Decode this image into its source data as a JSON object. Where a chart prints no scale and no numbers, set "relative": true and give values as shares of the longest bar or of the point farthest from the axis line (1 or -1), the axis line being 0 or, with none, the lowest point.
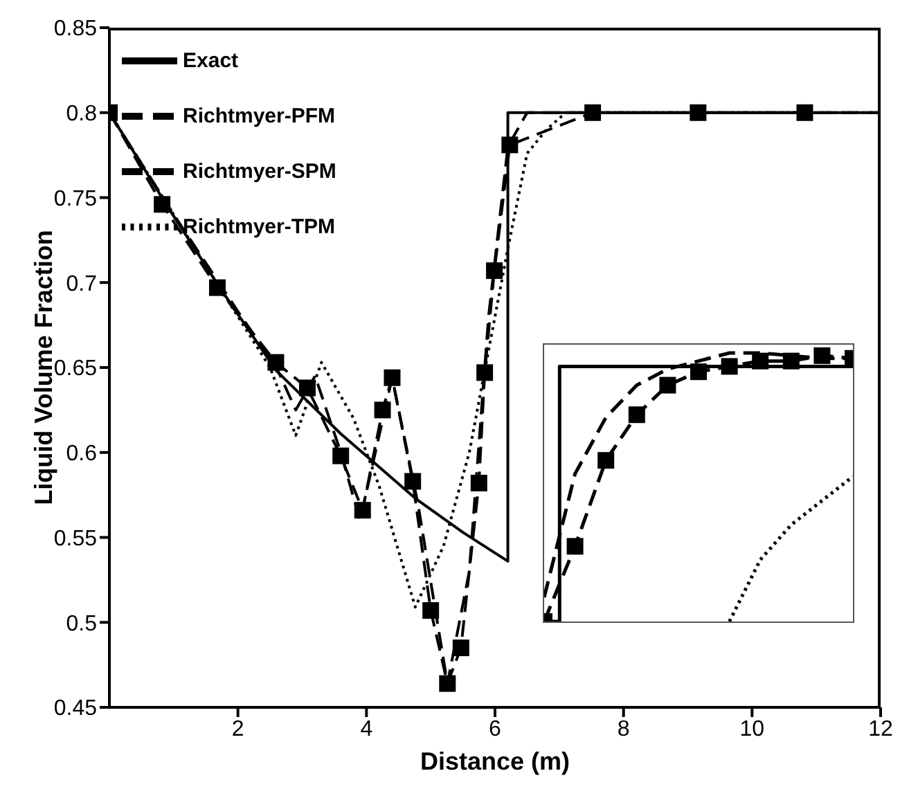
{
  "chart_data": [
    {
      "type": "line",
      "xlabel": "Distance (m)",
      "ylabel": "Liquid Volume Fraction",
      "xlim": [
        0,
        12
      ],
      "xticks": [
        2,
        4,
        6,
        8,
        10,
        12
      ],
      "ylim": [
        0.45,
        0.85
      ],
      "yticks": [
        0.45,
        0.5,
        0.55,
        0.6,
        0.65,
        0.7,
        0.75,
        0.8,
        0.85
      ],
      "legend": "top left",
      "series": [
        {
          "name": "Exact",
          "color": "#000000",
          "line_style": "solid",
          "x": [
            0,
            0.9,
            1.7,
            2.6,
            3.6,
            4.76,
            5.5,
            6.2,
            6.2,
            12
          ],
          "values": [
            0.8,
            0.745,
            0.698,
            0.648,
            0.611,
            0.573,
            0.553,
            0.536,
            0.8,
            0.8
          ]
        },
        {
          "name": "Richtmyer-PFM",
          "color": "#000000",
          "line_style": "dashed",
          "x": [
            0,
            1,
            2,
            2.6,
            2.9,
            3.2,
            3.6,
            3.9,
            4.4,
            4.8,
            5.26,
            5.6,
            5.9,
            6.2,
            6.5,
            7,
            12
          ],
          "values": [
            0.8,
            0.74,
            0.683,
            0.65,
            0.625,
            0.645,
            0.6,
            0.56,
            0.644,
            0.57,
            0.464,
            0.53,
            0.68,
            0.78,
            0.8,
            0.8,
            0.8
          ]
        },
        {
          "name": "Richtmyer-SPM",
          "color": "#000000",
          "line_style": "dashed",
          "marker": "square",
          "x": [
            0,
            0.82,
            1.68,
            2.59,
            3.08,
            3.6,
            3.94,
            4.25,
            4.4,
            4.72,
            5.0,
            5.26,
            5.47,
            5.75,
            5.84,
            5.99,
            6.23,
            7.52,
            9.16,
            10.82
          ],
          "values": [
            0.8,
            0.746,
            0.697,
            0.653,
            0.638,
            0.598,
            0.566,
            0.625,
            0.644,
            0.583,
            0.507,
            0.464,
            0.485,
            0.582,
            0.647,
            0.707,
            0.781,
            0.8,
            0.8,
            0.8
          ]
        },
        {
          "name": "Richtmyer-TPM",
          "color": "#000000",
          "line_style": "dotted",
          "x": [
            0,
            1,
            2,
            2.5,
            2.9,
            3.3,
            3.8,
            4.2,
            4.76,
            5.2,
            5.6,
            5.9,
            6.2,
            6.5,
            6.8,
            7.1,
            12
          ],
          "values": [
            0.8,
            0.74,
            0.68,
            0.65,
            0.61,
            0.653,
            0.62,
            0.58,
            0.509,
            0.545,
            0.6,
            0.66,
            0.72,
            0.776,
            0.79,
            0.8,
            0.8
          ]
        }
      ]
    },
    {
      "type": "line",
      "relative": true,
      "categories": [
        null,
        null,
        null,
        null,
        null,
        null,
        null,
        null,
        null,
        null,
        null
      ],
      "series": [
        {
          "type": "step",
          "color": "#000000",
          "line_style": "solid",
          "values": [
            0,
            0.95,
            0.95,
            0.95,
            0.95,
            0.95,
            0.95,
            0.95,
            0.95,
            0.95,
            0.95
          ]
        },
        {
          "color": "#000000",
          "line_style": "dashed",
          "values": [
            0.09,
            0.55,
            0.76,
            0.88,
            0.94,
            0.97,
            1,
            1,
            0.99,
            0.98,
            0.98
          ]
        },
        {
          "color": "#000000",
          "line_style": "dashed",
          "marker": "square",
          "values": [
            0,
            0.28,
            0.6,
            0.77,
            0.88,
            0.93,
            0.95,
            0.97,
            0.97,
            0.99,
            0.98
          ]
        },
        {
          "color": "#000000",
          "line_style": "dotted",
          "values": [
            null,
            null,
            null,
            null,
            null,
            null,
            0,
            0.23,
            0.36,
            0.45,
            0.54
          ]
        }
      ]
    }
  ]
}
